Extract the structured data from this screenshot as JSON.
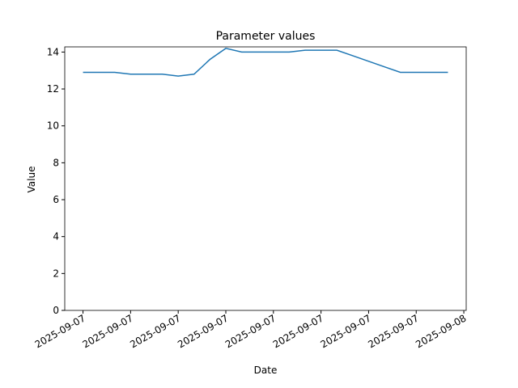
{
  "chart_data": {
    "type": "line",
    "title": "Parameter values",
    "x_label": "Date",
    "y_label": "Value",
    "x": [
      "2025-09-07T00:00",
      "2025-09-07T01:00",
      "2025-09-07T02:00",
      "2025-09-07T03:00",
      "2025-09-07T04:00",
      "2025-09-07T05:00",
      "2025-09-07T06:00",
      "2025-09-07T07:00",
      "2025-09-07T08:00",
      "2025-09-07T09:00",
      "2025-09-07T10:00",
      "2025-09-07T11:00",
      "2025-09-07T12:00",
      "2025-09-07T13:00",
      "2025-09-07T14:00",
      "2025-09-07T15:00",
      "2025-09-07T16:00",
      "2025-09-07T17:00",
      "2025-09-07T18:00",
      "2025-09-07T19:00",
      "2025-09-07T20:00",
      "2025-09-07T21:00",
      "2025-09-07T22:00",
      "2025-09-07T23:00"
    ],
    "series": [
      {
        "name": "Value",
        "color": "#1f77b4",
        "values": [
          12.9,
          12.9,
          12.9,
          12.8,
          12.8,
          12.8,
          12.7,
          12.8,
          13.6,
          14.2,
          14.0,
          14.0,
          14.0,
          14.0,
          14.1,
          14.1,
          14.1,
          13.8,
          13.5,
          13.2,
          12.9,
          12.9,
          12.9,
          12.9
        ]
      }
    ],
    "xlim": [
      "2025-09-06T22:51",
      "2025-09-08T00:09"
    ],
    "xticks": [
      {
        "value": "2025-09-07T00:00",
        "label": "2025-09-07"
      },
      {
        "value": "2025-09-07T03:00",
        "label": "2025-09-07"
      },
      {
        "value": "2025-09-07T06:00",
        "label": "2025-09-07"
      },
      {
        "value": "2025-09-07T09:00",
        "label": "2025-09-07"
      },
      {
        "value": "2025-09-07T12:00",
        "label": "2025-09-07"
      },
      {
        "value": "2025-09-07T15:00",
        "label": "2025-09-07"
      },
      {
        "value": "2025-09-07T18:00",
        "label": "2025-09-07"
      },
      {
        "value": "2025-09-07T21:00",
        "label": "2025-09-07"
      },
      {
        "value": "2025-09-08T00:00",
        "label": "2025-09-08"
      }
    ],
    "ylim": [
      0,
      14.28
    ],
    "yticks": [
      0,
      2,
      4,
      6,
      8,
      10,
      12,
      14
    ],
    "grid": false
  }
}
